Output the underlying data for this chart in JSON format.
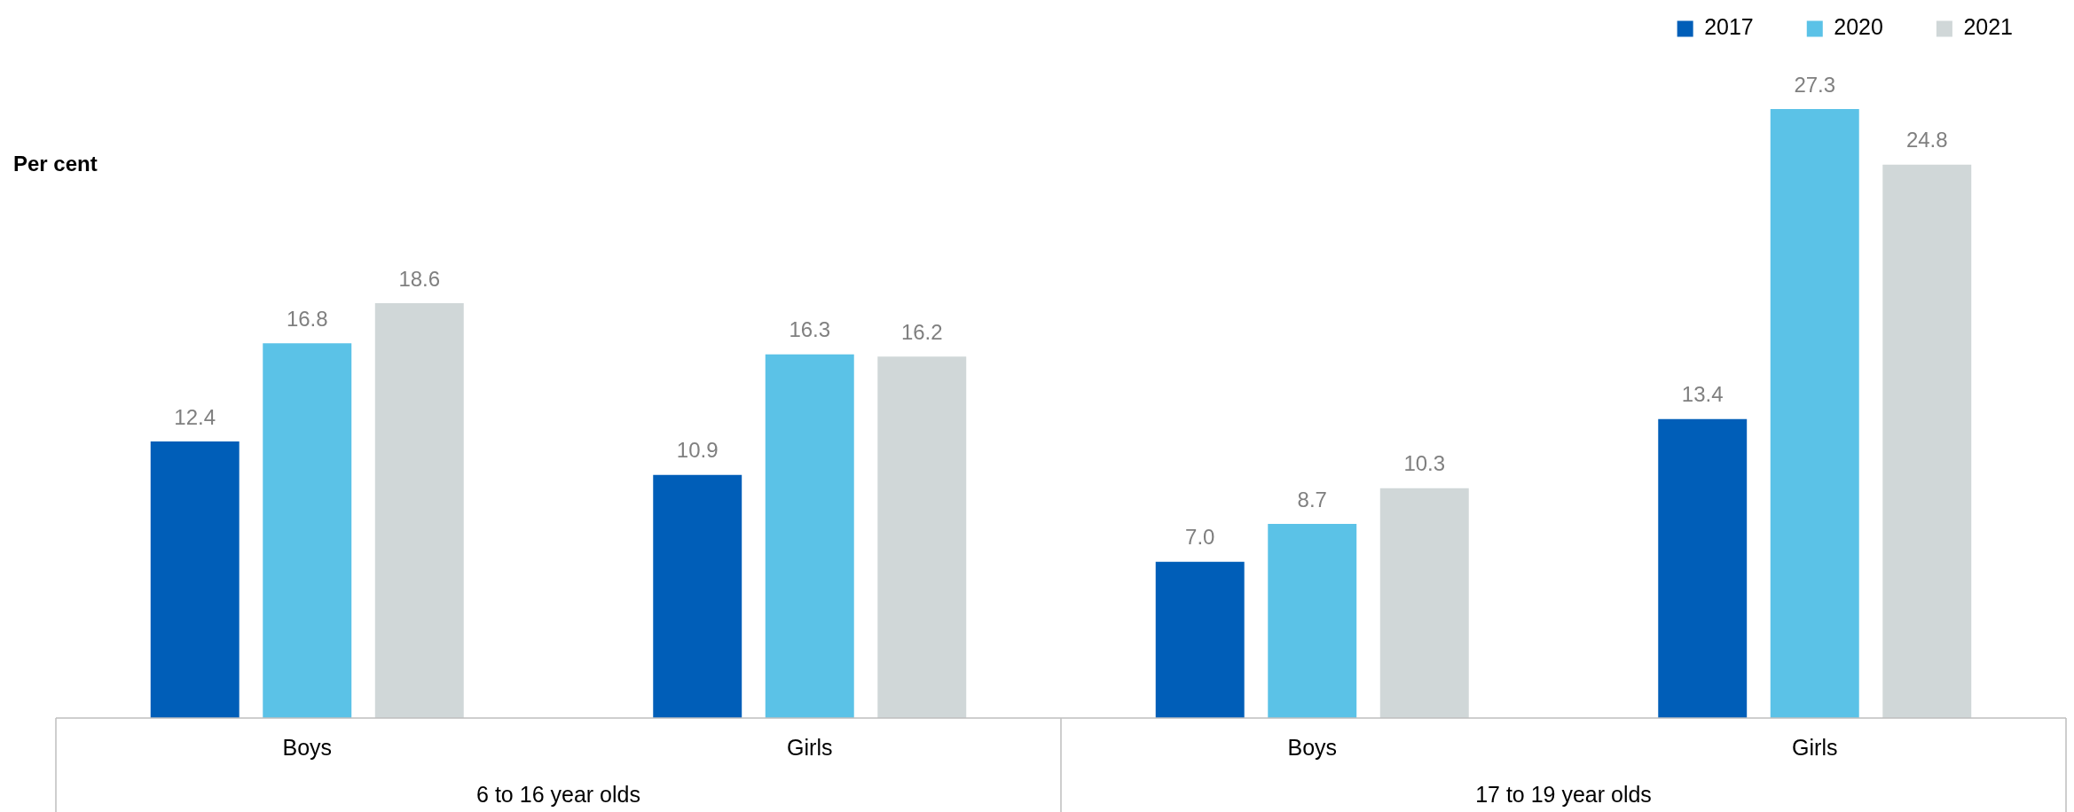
{
  "chart_data": {
    "type": "bar",
    "ylabel": "Per cent",
    "categories": [
      "Boys",
      "Girls",
      "Boys",
      "Girls"
    ],
    "annotations": [
      "6 to 16 year olds",
      "17 to 19 year olds"
    ],
    "series": [
      {
        "name": "2017",
        "color": "#005eb8",
        "values": [
          12.4,
          10.9,
          7.0,
          13.4
        ],
        "value_labels": [
          "12.4",
          "10.9",
          "7.0",
          "13.4"
        ]
      },
      {
        "name": "2020",
        "color": "#5bc2e7",
        "values": [
          16.8,
          16.3,
          8.7,
          27.3
        ],
        "value_labels": [
          "16.8",
          "16.3",
          "8.7",
          "27.3"
        ]
      },
      {
        "name": "2021",
        "color": "#d0d7d8",
        "values": [
          18.6,
          16.2,
          10.3,
          24.8
        ],
        "value_labels": [
          "18.6",
          "16.2",
          "10.3",
          "24.8"
        ]
      }
    ],
    "legend": "top right"
  }
}
